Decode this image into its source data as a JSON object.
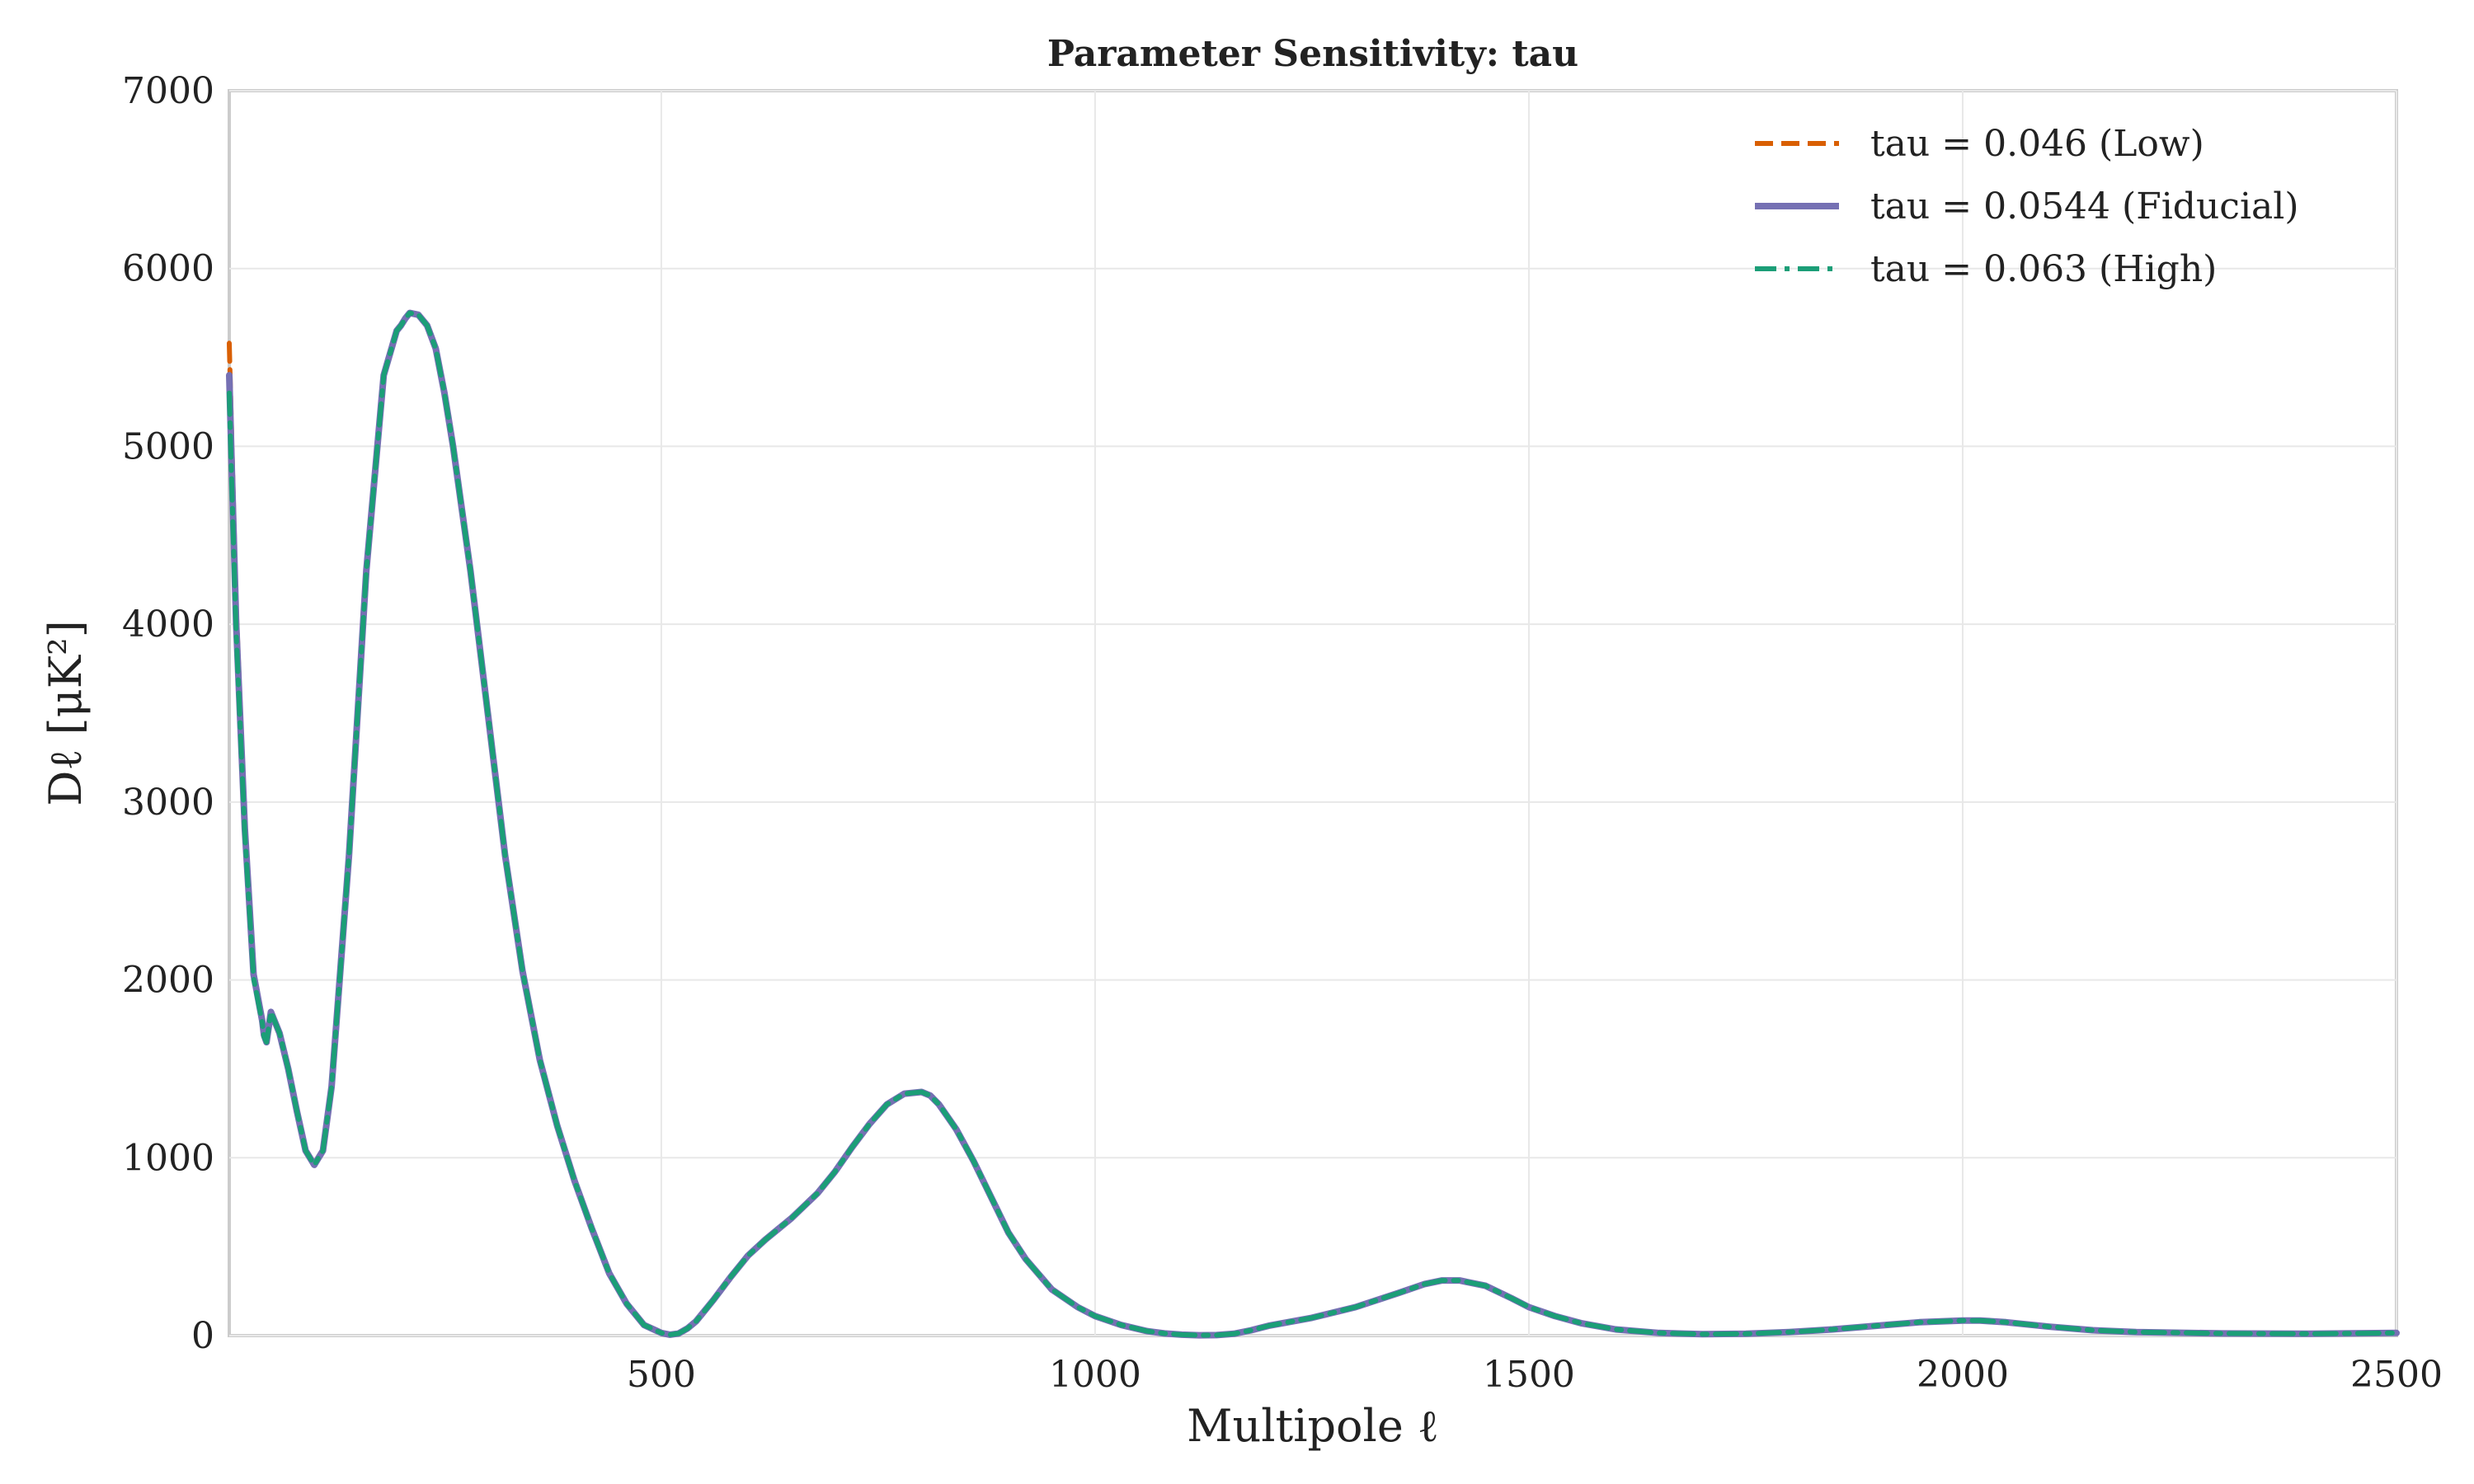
{
  "chart_data": {
    "type": "line",
    "title": "Parameter Sensitivity: tau",
    "xlabel": "Multipole ℓ",
    "ylabel": "Dℓ [μK²]",
    "xlim": [
      2,
      2500
    ],
    "ylim": [
      0,
      7000
    ],
    "xticks": [
      500,
      1000,
      1500,
      2000,
      2500
    ],
    "yticks": [
      0,
      1000,
      2000,
      3000,
      4000,
      5000,
      6000,
      7000
    ],
    "grid": true,
    "legend_position": "top-right",
    "x": [
      2,
      5,
      10,
      20,
      30,
      40,
      42,
      45,
      50,
      60,
      70,
      80,
      90,
      100,
      110,
      120,
      140,
      160,
      180,
      195,
      200,
      205,
      210,
      220,
      230,
      240,
      250,
      260,
      280,
      300,
      320,
      340,
      360,
      380,
      400,
      420,
      440,
      460,
      480,
      500,
      510,
      520,
      530,
      540,
      550,
      560,
      580,
      600,
      620,
      650,
      680,
      700,
      720,
      740,
      760,
      780,
      800,
      810,
      820,
      840,
      860,
      880,
      900,
      920,
      950,
      980,
      1000,
      1030,
      1060,
      1080,
      1100,
      1120,
      1140,
      1160,
      1180,
      1200,
      1250,
      1300,
      1350,
      1380,
      1400,
      1420,
      1450,
      1480,
      1500,
      1530,
      1560,
      1600,
      1650,
      1700,
      1750,
      1800,
      1850,
      1900,
      1950,
      2000,
      2020,
      2050,
      2100,
      2150,
      2200,
      2300,
      2400,
      2500
    ],
    "series": [
      {
        "name": "tau = 0.046 (Low)",
        "color": "#d95f02",
        "dash": "dashed",
        "values": [
          5580,
          5000,
          4100,
          2900,
          2050,
          1780,
          1700,
          1650,
          1820,
          1700,
          1500,
          1260,
          1040,
          960,
          1040,
          1400,
          2700,
          4300,
          5400,
          5650,
          5680,
          5720,
          5750,
          5740,
          5680,
          5550,
          5300,
          5000,
          4300,
          3500,
          2700,
          2050,
          1550,
          1180,
          870,
          600,
          350,
          180,
          60,
          15,
          5,
          12,
          40,
          80,
          140,
          200,
          330,
          450,
          540,
          660,
          800,
          920,
          1060,
          1190,
          1300,
          1360,
          1370,
          1350,
          1300,
          1160,
          980,
          780,
          580,
          430,
          260,
          160,
          110,
          60,
          25,
          12,
          5,
          2,
          3,
          10,
          30,
          55,
          100,
          160,
          240,
          290,
          310,
          310,
          280,
          210,
          160,
          110,
          70,
          35,
          15,
          8,
          10,
          20,
          35,
          55,
          75,
          85,
          85,
          75,
          50,
          30,
          20,
          12,
          10,
          15
        ]
      },
      {
        "name": "tau = 0.0544 (Fiducial)",
        "color": "#7570b3",
        "dash": "solid",
        "values": [
          5400,
          4850,
          4000,
          2850,
          2030,
          1770,
          1690,
          1650,
          1820,
          1700,
          1500,
          1260,
          1040,
          960,
          1040,
          1400,
          2700,
          4300,
          5400,
          5650,
          5680,
          5720,
          5750,
          5740,
          5680,
          5550,
          5300,
          5000,
          4300,
          3500,
          2700,
          2050,
          1550,
          1180,
          870,
          600,
          350,
          180,
          60,
          15,
          5,
          12,
          40,
          80,
          140,
          200,
          330,
          450,
          540,
          660,
          800,
          920,
          1060,
          1190,
          1300,
          1360,
          1370,
          1350,
          1300,
          1160,
          980,
          780,
          580,
          430,
          260,
          160,
          110,
          60,
          25,
          12,
          5,
          2,
          3,
          10,
          30,
          55,
          100,
          160,
          240,
          290,
          310,
          310,
          280,
          210,
          160,
          110,
          70,
          35,
          15,
          8,
          10,
          20,
          35,
          55,
          75,
          85,
          85,
          75,
          50,
          30,
          20,
          12,
          10,
          15
        ]
      },
      {
        "name": "tau = 0.063 (High)",
        "color": "#1b9e77",
        "dash": "dashdot",
        "values": [
          5300,
          4750,
          3950,
          2820,
          2010,
          1760,
          1680,
          1650,
          1820,
          1700,
          1500,
          1260,
          1040,
          960,
          1040,
          1400,
          2700,
          4300,
          5400,
          5650,
          5680,
          5720,
          5750,
          5740,
          5680,
          5550,
          5300,
          5000,
          4300,
          3500,
          2700,
          2050,
          1550,
          1180,
          870,
          600,
          350,
          180,
          60,
          15,
          5,
          12,
          40,
          80,
          140,
          200,
          330,
          450,
          540,
          660,
          800,
          920,
          1060,
          1190,
          1300,
          1360,
          1370,
          1350,
          1300,
          1160,
          980,
          780,
          580,
          430,
          260,
          160,
          110,
          60,
          25,
          12,
          5,
          2,
          3,
          10,
          30,
          55,
          100,
          160,
          240,
          290,
          310,
          310,
          280,
          210,
          160,
          110,
          70,
          35,
          15,
          8,
          10,
          20,
          35,
          55,
          75,
          85,
          85,
          75,
          50,
          30,
          20,
          12,
          10,
          15
        ]
      }
    ]
  }
}
